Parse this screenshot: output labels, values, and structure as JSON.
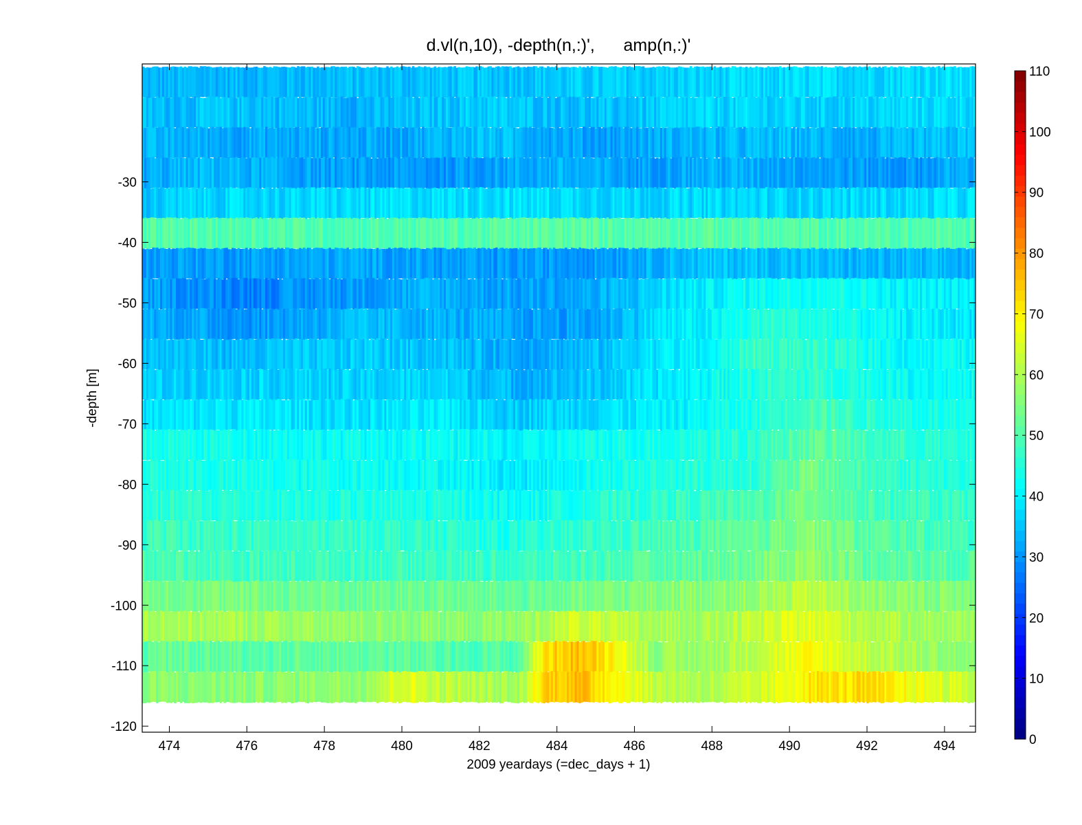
{
  "chart_data": {
    "type": "heatmap",
    "title": "d.vl(n,10), -depth(n,:)',      amp(n,:)'",
    "xlabel": "2009 yeardays (=dec_days + 1)",
    "ylabel": "-depth [m]",
    "xlim": [
      473.3,
      494.8
    ],
    "ylim": [
      -121,
      -10.5
    ],
    "xticks": [
      474,
      476,
      478,
      480,
      482,
      484,
      486,
      488,
      490,
      492,
      494
    ],
    "yticks": [
      -30,
      -40,
      -50,
      -60,
      -70,
      -80,
      -90,
      -100,
      -110,
      -120
    ],
    "colorbar": {
      "range": [
        0,
        110
      ],
      "ticks": [
        0,
        10,
        20,
        30,
        40,
        50,
        60,
        70,
        80,
        90,
        100,
        110
      ],
      "colormap": "jet"
    },
    "bins": [
      {
        "depth_top": -11,
        "depth_bottom": -16,
        "profile": [
          [
            473.3,
            33
          ],
          [
            478,
            34
          ],
          [
            482,
            35
          ],
          [
            486,
            36
          ],
          [
            490,
            37
          ],
          [
            494.8,
            38
          ]
        ]
      },
      {
        "depth_top": -16,
        "depth_bottom": -21,
        "profile": [
          [
            473.3,
            34
          ],
          [
            476,
            35
          ],
          [
            479,
            33
          ],
          [
            482,
            36
          ],
          [
            485,
            34
          ],
          [
            488,
            37
          ],
          [
            491,
            36
          ],
          [
            494.8,
            38
          ]
        ]
      },
      {
        "depth_top": -21,
        "depth_bottom": -26,
        "profile": [
          [
            473.3,
            33
          ],
          [
            477,
            32
          ],
          [
            480,
            32
          ],
          [
            482,
            35
          ],
          [
            485,
            31
          ],
          [
            487,
            33
          ],
          [
            490,
            34
          ],
          [
            492,
            32
          ],
          [
            494.8,
            35
          ]
        ]
      },
      {
        "depth_top": -26,
        "depth_bottom": -31,
        "profile": [
          [
            473.3,
            32
          ],
          [
            475,
            34
          ],
          [
            478,
            31
          ],
          [
            481,
            30
          ],
          [
            484,
            33
          ],
          [
            486,
            31
          ],
          [
            488,
            33
          ],
          [
            490,
            32
          ],
          [
            493,
            30
          ],
          [
            494.8,
            33
          ]
        ]
      },
      {
        "depth_top": -31,
        "depth_bottom": -36,
        "profile": [
          [
            473.3,
            35
          ],
          [
            475,
            37
          ],
          [
            478,
            37
          ],
          [
            481,
            38
          ],
          [
            484,
            38
          ],
          [
            486,
            37
          ],
          [
            489,
            37
          ],
          [
            492,
            37
          ],
          [
            494.8,
            38
          ]
        ]
      },
      {
        "depth_top": -36,
        "depth_bottom": -41,
        "profile": [
          [
            473.3,
            50
          ],
          [
            480,
            50
          ],
          [
            486,
            51
          ],
          [
            490,
            50
          ],
          [
            494.8,
            50
          ]
        ]
      },
      {
        "depth_top": -41,
        "depth_bottom": -46,
        "profile": [
          [
            473.3,
            31
          ],
          [
            476,
            31
          ],
          [
            479,
            32
          ],
          [
            482,
            30
          ],
          [
            485,
            31
          ],
          [
            487,
            34
          ],
          [
            489,
            35
          ],
          [
            492,
            33
          ],
          [
            494.8,
            33
          ]
        ]
      },
      {
        "depth_top": -46,
        "depth_bottom": -51,
        "profile": [
          [
            473.3,
            31
          ],
          [
            476,
            28
          ],
          [
            478,
            30
          ],
          [
            481,
            33
          ],
          [
            483,
            31
          ],
          [
            485,
            32
          ],
          [
            487,
            38
          ],
          [
            489,
            42
          ],
          [
            491,
            44
          ],
          [
            493,
            40
          ],
          [
            494.8,
            40
          ]
        ]
      },
      {
        "depth_top": -51,
        "depth_bottom": -56,
        "profile": [
          [
            473.3,
            33
          ],
          [
            476,
            30
          ],
          [
            479,
            34
          ],
          [
            481,
            33
          ],
          [
            483,
            31
          ],
          [
            485,
            31
          ],
          [
            486.5,
            38
          ],
          [
            488,
            40
          ],
          [
            489.5,
            46
          ],
          [
            491,
            44
          ],
          [
            493,
            40
          ],
          [
            494.8,
            39
          ]
        ]
      },
      {
        "depth_top": -56,
        "depth_bottom": -61,
        "profile": [
          [
            473.3,
            35
          ],
          [
            476,
            34
          ],
          [
            479,
            36
          ],
          [
            481,
            35
          ],
          [
            483,
            32
          ],
          [
            485,
            34
          ],
          [
            486.5,
            39
          ],
          [
            488,
            40
          ],
          [
            489,
            48
          ],
          [
            491,
            46
          ],
          [
            493,
            41
          ],
          [
            494.8,
            42
          ]
        ]
      },
      {
        "depth_top": -61,
        "depth_bottom": -66,
        "profile": [
          [
            473.3,
            36
          ],
          [
            476,
            37
          ],
          [
            479,
            36
          ],
          [
            481,
            37
          ],
          [
            483,
            33
          ],
          [
            485,
            35
          ],
          [
            486.5,
            38
          ],
          [
            488,
            42
          ],
          [
            489.5,
            46
          ],
          [
            491,
            46
          ],
          [
            493,
            42
          ],
          [
            494.8,
            42
          ]
        ]
      },
      {
        "depth_top": -66,
        "depth_bottom": -71,
        "profile": [
          [
            473.3,
            38
          ],
          [
            476,
            39
          ],
          [
            479,
            38
          ],
          [
            481,
            39
          ],
          [
            483,
            36
          ],
          [
            485,
            38
          ],
          [
            487,
            40
          ],
          [
            489,
            44
          ],
          [
            490.5,
            50
          ],
          [
            492,
            46
          ],
          [
            494.8,
            42
          ]
        ]
      },
      {
        "depth_top": -71,
        "depth_bottom": -76,
        "profile": [
          [
            473.3,
            44
          ],
          [
            476,
            43
          ],
          [
            479,
            42
          ],
          [
            481,
            42
          ],
          [
            483,
            40
          ],
          [
            485,
            43
          ],
          [
            487,
            44
          ],
          [
            489,
            46
          ],
          [
            490.5,
            52
          ],
          [
            492,
            48
          ],
          [
            494.8,
            44
          ]
        ]
      },
      {
        "depth_top": -76,
        "depth_bottom": -81,
        "profile": [
          [
            473.3,
            45
          ],
          [
            476,
            43
          ],
          [
            479,
            43
          ],
          [
            481,
            42
          ],
          [
            483,
            39
          ],
          [
            485,
            43
          ],
          [
            487,
            45
          ],
          [
            489,
            46
          ],
          [
            490.5,
            54
          ],
          [
            492,
            48
          ],
          [
            494.8,
            44
          ]
        ]
      },
      {
        "depth_top": -81,
        "depth_bottom": -86,
        "profile": [
          [
            473.3,
            46
          ],
          [
            476,
            45
          ],
          [
            479,
            44
          ],
          [
            481,
            44
          ],
          [
            483,
            42
          ],
          [
            485,
            45
          ],
          [
            487,
            47
          ],
          [
            489,
            49
          ],
          [
            490.5,
            55
          ],
          [
            492,
            49
          ],
          [
            494.8,
            46
          ]
        ]
      },
      {
        "depth_top": -86,
        "depth_bottom": -91,
        "profile": [
          [
            473.3,
            48
          ],
          [
            476,
            47
          ],
          [
            479,
            47
          ],
          [
            481,
            46
          ],
          [
            483,
            44
          ],
          [
            485,
            47
          ],
          [
            487,
            49
          ],
          [
            489,
            51
          ],
          [
            490.5,
            57
          ],
          [
            492,
            51
          ],
          [
            494.8,
            48
          ]
        ]
      },
      {
        "depth_top": -91,
        "depth_bottom": -96,
        "profile": [
          [
            473.3,
            50
          ],
          [
            476,
            48
          ],
          [
            479,
            48
          ],
          [
            481,
            48
          ],
          [
            483,
            47
          ],
          [
            485,
            49
          ],
          [
            487,
            51
          ],
          [
            489,
            53
          ],
          [
            490.5,
            58
          ],
          [
            492,
            52
          ],
          [
            494.8,
            50
          ]
        ]
      },
      {
        "depth_top": -96,
        "depth_bottom": -101,
        "profile": [
          [
            473.3,
            55
          ],
          [
            476,
            54
          ],
          [
            479,
            53
          ],
          [
            481,
            53
          ],
          [
            483,
            52
          ],
          [
            485,
            54
          ],
          [
            487,
            56
          ],
          [
            489,
            57
          ],
          [
            490.5,
            62
          ],
          [
            492,
            57
          ],
          [
            494.8,
            55
          ]
        ]
      },
      {
        "depth_top": -101,
        "depth_bottom": -106,
        "profile": [
          [
            473.3,
            60
          ],
          [
            476,
            59
          ],
          [
            479,
            57
          ],
          [
            481,
            56
          ],
          [
            483,
            57
          ],
          [
            484.5,
            64
          ],
          [
            486,
            60
          ],
          [
            488,
            59
          ],
          [
            490.5,
            66
          ],
          [
            492,
            61
          ],
          [
            494.8,
            58
          ]
        ]
      },
      {
        "depth_top": -106,
        "depth_bottom": -111,
        "profile": [
          [
            473.3,
            52
          ],
          [
            476,
            51
          ],
          [
            479,
            52
          ],
          [
            481,
            50
          ],
          [
            483,
            50
          ],
          [
            483.7,
            72
          ],
          [
            484.5,
            76
          ],
          [
            485.5,
            70
          ],
          [
            486.5,
            57
          ],
          [
            488,
            58
          ],
          [
            489.5,
            64
          ],
          [
            490.5,
            68
          ],
          [
            492,
            62
          ],
          [
            494.8,
            55
          ]
        ]
      },
      {
        "depth_top": -111,
        "depth_bottom": -116,
        "profile": [
          [
            473.3,
            56
          ],
          [
            476,
            56
          ],
          [
            479,
            58
          ],
          [
            480,
            66
          ],
          [
            481,
            62
          ],
          [
            483,
            58
          ],
          [
            483.7,
            74
          ],
          [
            484.5,
            76
          ],
          [
            485.5,
            70
          ],
          [
            486.5,
            62
          ],
          [
            488,
            60
          ],
          [
            489.5,
            64
          ],
          [
            490.5,
            71
          ],
          [
            492,
            72
          ],
          [
            493,
            68
          ],
          [
            494.8,
            62
          ]
        ]
      }
    ]
  }
}
